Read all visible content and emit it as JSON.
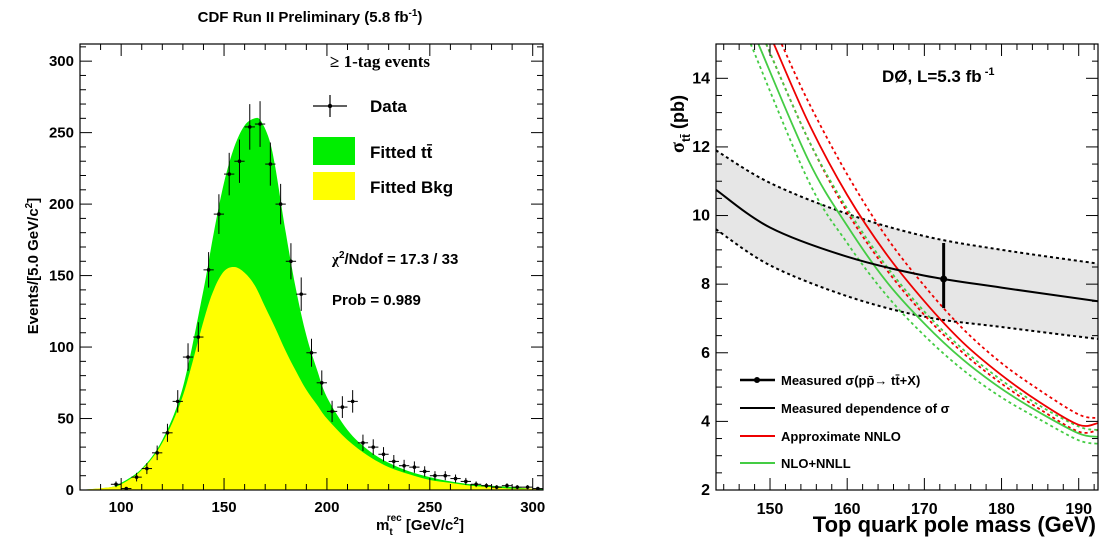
{
  "colors": {
    "signal": "#00ee00",
    "background": "#ffff00",
    "data": "#000000",
    "band_fill": "#e6e6e6",
    "nnlo": "#ee0000",
    "nlo_nnll": "#44cc44"
  },
  "chart_data": [
    {
      "type": "area",
      "title": "CDF Run II Preliminary (5.8 fb-1)",
      "title_main": "CDF Run II Preliminary (5.8 fb",
      "title_sup": "-1",
      "title_end": ")",
      "ylabel_main": "Events/[5.0 GeV/c",
      "ylabel_sup": "2",
      "ylabel_end": "]",
      "xlabel_main": "m",
      "xlabel_sub": "t",
      "xlabel_sup": "rec",
      "xlabel_end": " [GeV/c",
      "xlabel_sup2": "2",
      "xlabel_close": "]",
      "xlim": [
        80,
        305
      ],
      "ylim": [
        0,
        312
      ],
      "xticks": [
        100,
        150,
        200,
        250,
        300
      ],
      "yticks": [
        0,
        50,
        100,
        150,
        200,
        250,
        300
      ],
      "legend_header": "≥ 1-tag events",
      "legend": [
        "Data",
        "Fitted tt̄",
        "Fitted Bkg"
      ],
      "chi2_label": "χ²/Ndof = 17.3 / 33",
      "chi2_text": "/Ndof = 17.3 / 33",
      "prob_label": "Prob = 0.989",
      "series": [
        {
          "name": "Fitted tt̄",
          "x": [
            80,
            95,
            100,
            110,
            120,
            130,
            140,
            145,
            150,
            155,
            160,
            165,
            168,
            172,
            175,
            180,
            185,
            190,
            195,
            200,
            210,
            220,
            230,
            240,
            250,
            260,
            270,
            280,
            290,
            300,
            305
          ],
          "y": [
            0,
            2,
            5,
            15,
            35,
            72,
            140,
            180,
            215,
            240,
            255,
            260,
            258,
            245,
            225,
            180,
            140,
            108,
            85,
            65,
            42,
            28,
            19,
            13,
            9,
            6,
            4,
            3,
            2,
            1,
            1
          ]
        },
        {
          "name": "Fitted Bkg",
          "x": [
            80,
            95,
            100,
            110,
            120,
            130,
            140,
            145,
            150,
            155,
            160,
            165,
            170,
            175,
            180,
            185,
            190,
            195,
            200,
            210,
            220,
            230,
            240,
            250,
            260,
            270,
            280,
            290,
            300,
            305
          ],
          "y": [
            0,
            2,
            4,
            14,
            33,
            66,
            118,
            140,
            153,
            156,
            152,
            143,
            128,
            113,
            97,
            83,
            70,
            60,
            50,
            35,
            24,
            16,
            11,
            7,
            5,
            3,
            2,
            1,
            1,
            0
          ]
        },
        {
          "name": "Data",
          "x": [
            97.5,
            102.5,
            107.5,
            112.5,
            117.5,
            122.5,
            127.5,
            132.5,
            137.5,
            142.5,
            147.5,
            152.5,
            157.5,
            162.5,
            167.5,
            172.5,
            177.5,
            182.5,
            187.5,
            192.5,
            197.5,
            202.5,
            207.5,
            212.5,
            217.5,
            222.5,
            227.5,
            232.5,
            237.5,
            242.5,
            247.5,
            252.5,
            257.5,
            262.5,
            267.5,
            272.5,
            277.5,
            282.5,
            287.5,
            292.5,
            297.5,
            302.5
          ],
          "y": [
            4,
            1,
            9,
            15,
            26,
            40,
            62,
            93,
            107,
            154,
            193,
            221,
            230,
            254,
            256,
            228,
            200,
            160,
            137,
            96,
            75,
            55,
            58,
            62,
            33,
            30,
            25,
            20,
            17,
            16,
            13,
            10,
            10,
            8,
            6,
            4,
            3,
            2,
            3,
            2,
            2,
            1
          ]
        }
      ]
    },
    {
      "type": "line",
      "title": "DØ, L=5.3 fb-1",
      "title_main": "DØ, L=5.3 fb",
      "title_sup": " -1",
      "ylabel_main": "σ",
      "ylabel_sub": "tt̄",
      "ylabel_end": " (pb)",
      "xlabel": "Top quark pole mass (GeV)",
      "xlim": [
        143,
        192.5
      ],
      "ylim": [
        2,
        15
      ],
      "xticks": [
        150,
        160,
        170,
        180,
        190
      ],
      "yticks": [
        2,
        4,
        6,
        8,
        10,
        12,
        14
      ],
      "legend": [
        "Measured σ(pp̄→ tt̄+X)",
        "Measured dependence of σ",
        "Approximate NNLO",
        "NLO+NNLL"
      ],
      "measurement": {
        "x": 172.5,
        "y": 8.15,
        "ylow": 7.3,
        "yhigh": 9.2
      },
      "series": [
        {
          "name": "Measured dependence of σ",
          "x": [
            143,
            150,
            160,
            170,
            180,
            192.5
          ],
          "y": [
            10.75,
            9.65,
            8.8,
            8.25,
            7.9,
            7.5
          ]
        },
        {
          "name": "Measured dependence of σ band upper",
          "x": [
            143,
            150,
            160,
            170,
            180,
            192.5
          ],
          "y": [
            11.9,
            10.95,
            10.05,
            9.4,
            9.0,
            8.6
          ]
        },
        {
          "name": "Measured dependence of σ band lower",
          "x": [
            143,
            150,
            160,
            170,
            180,
            192.5
          ],
          "y": [
            9.6,
            8.55,
            7.65,
            7.05,
            6.75,
            6.4
          ]
        },
        {
          "name": "Approximate NNLO",
          "x": [
            150.5,
            155,
            160,
            165,
            170,
            175,
            180,
            185,
            190,
            192.5
          ],
          "y": [
            15,
            12.7,
            10.6,
            8.9,
            7.5,
            6.3,
            5.35,
            4.55,
            3.9,
            3.95
          ]
        },
        {
          "name": "Approximate NNLO upper",
          "x": [
            151.5,
            155,
            160,
            165,
            170,
            175,
            180,
            185,
            190,
            192.5
          ],
          "y": [
            15,
            13.3,
            11.2,
            9.4,
            7.95,
            6.7,
            5.7,
            4.9,
            4.2,
            4.1
          ]
        },
        {
          "name": "Approximate NNLO lower",
          "x": [
            149.5,
            155,
            160,
            165,
            170,
            175,
            180,
            185,
            190,
            192.5
          ],
          "y": [
            15,
            12.2,
            10.1,
            8.45,
            7.1,
            6.0,
            5.1,
            4.35,
            3.7,
            3.75
          ]
        },
        {
          "name": "NLO+NNLL",
          "x": [
            148.5,
            155,
            160,
            165,
            170,
            175,
            180,
            185,
            190,
            192.5
          ],
          "y": [
            15,
            11.6,
            9.7,
            8.1,
            6.85,
            5.8,
            4.95,
            4.25,
            3.65,
            3.55
          ]
        },
        {
          "name": "NLO+NNLL upper",
          "x": [
            149.5,
            155,
            160,
            165,
            170,
            175,
            180,
            185,
            190,
            192.5
          ],
          "y": [
            15,
            12.2,
            10.2,
            8.55,
            7.2,
            6.1,
            5.2,
            4.45,
            3.85,
            3.75
          ]
        },
        {
          "name": "NLO+NNLL lower",
          "x": [
            147.5,
            155,
            160,
            165,
            170,
            175,
            180,
            185,
            190,
            192.5
          ],
          "y": [
            15,
            11.0,
            9.2,
            7.7,
            6.5,
            5.5,
            4.7,
            4.05,
            3.45,
            3.35
          ]
        }
      ]
    }
  ]
}
